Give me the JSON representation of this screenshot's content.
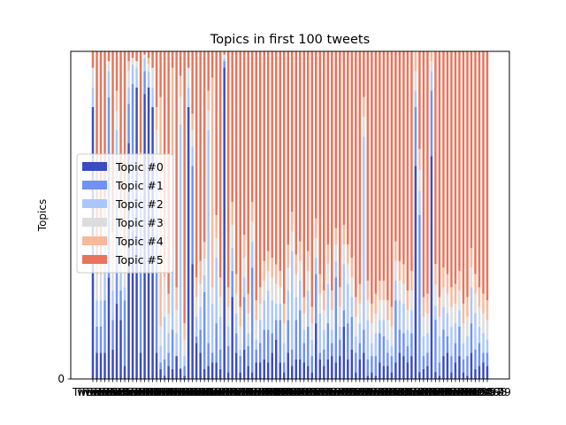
{
  "chart_data": {
    "type": "bar",
    "stacked": true,
    "title": "Topics in first 100 tweets",
    "xlabel": "",
    "ylabel": "Topics",
    "ylim": [
      0,
      1.0
    ],
    "yticks": [
      {
        "value": 0,
        "label": "0"
      }
    ],
    "xtick_prefix": "Tweet ",
    "grid": false,
    "legend_position": "center-left",
    "colors": [
      "#3b4cc0",
      "#6f92f3",
      "#aac7fd",
      "#dddcdc",
      "#f7b89c",
      "#e7745b"
    ],
    "series": [
      {
        "name": "Topic #0",
        "values": [
          0.83,
          0.08,
          0.08,
          0.08,
          0.31,
          0.09,
          0.23,
          0.18,
          0.04,
          0.72,
          0.45,
          0.89,
          0.08,
          0.87,
          0.89,
          0.83,
          0.08,
          0.03,
          0.01,
          0.04,
          0.03,
          0.07,
          0.03,
          0.01,
          0.83,
          0.35,
          0.11,
          0.08,
          0.03,
          0.04,
          0.05,
          0.05,
          0.03,
          0.95,
          0.02,
          0.25,
          0.08,
          0.02,
          0.09,
          0.04,
          0.02,
          0.05,
          0.05,
          0.06,
          0.05,
          0.08,
          0.12,
          0.05,
          0.02,
          0.08,
          0.04,
          0.06,
          0.06,
          0.05,
          0.04,
          0.02,
          0.17,
          0.06,
          0.04,
          0.06,
          0.07,
          0.05,
          0.07,
          0.16,
          0.06,
          0.09,
          0.02,
          0.06,
          0.08,
          0.01,
          0.02,
          0.01,
          0.05,
          0.04,
          0.04,
          0.02,
          0.05,
          0.08,
          0.07,
          0.05,
          0.07,
          0.65,
          0.02,
          0.03,
          0.04,
          0.68,
          0.02,
          0.01,
          0.07,
          0.08,
          0.02,
          0.05,
          0.07,
          0.02,
          0.01,
          0.08,
          0.03,
          0.04,
          0.05,
          0.04
        ]
      },
      {
        "name": "Topic #1",
        "values": [
          0.0,
          0.08,
          0.08,
          0.16,
          0.55,
          0.09,
          0.3,
          0.09,
          0.2,
          0.12,
          0.45,
          0.0,
          0.47,
          0.07,
          0.0,
          0.0,
          0.36,
          0.02,
          0.05,
          0.04,
          0.12,
          0.0,
          0.0,
          0.03,
          0.0,
          0.3,
          0.02,
          0.07,
          0.23,
          0.07,
          0.03,
          0.12,
          0.06,
          0.02,
          0.08,
          0.08,
          0.06,
          0.05,
          0.16,
          0.06,
          0.32,
          0.04,
          0.06,
          0.09,
          0.1,
          0.06,
          0.06,
          0.13,
          0.03,
          0.1,
          0.05,
          0.12,
          0.15,
          0.06,
          0.12,
          0.05,
          0.15,
          0.02,
          0.05,
          0.11,
          0.04,
          0.26,
          0.05,
          0.05,
          0.11,
          0.1,
          0.06,
          0.05,
          0.07,
          0.05,
          0.05,
          0.06,
          0.09,
          0.09,
          0.04,
          0.05,
          0.19,
          0.07,
          0.07,
          0.05,
          0.07,
          0.18,
          0.45,
          0.04,
          0.04,
          0.2,
          0.15,
          0.04,
          0.08,
          0.05,
          0.05,
          0.06,
          0.09,
          0.04,
          0.06,
          0.09,
          0.06,
          0.07,
          0.03,
          0.04
        ]
      },
      {
        "name": "Topic #2",
        "values": [
          0.06,
          0.08,
          0.08,
          0.17,
          0.08,
          0.09,
          0.23,
          0.09,
          0.04,
          0.05,
          0.06,
          0.06,
          0.02,
          0.04,
          0.05,
          0.06,
          0.24,
          0.05,
          0.13,
          0.06,
          0.2,
          0.07,
          0.7,
          0.03,
          0.06,
          0.06,
          0.06,
          0.07,
          0.05,
          0.65,
          0.15,
          0.2,
          0.1,
          0.01,
          0.06,
          0.07,
          0.06,
          0.02,
          0.06,
          0.04,
          0.08,
          0.03,
          0.07,
          0.09,
          0.12,
          0.1,
          0.05,
          0.05,
          0.06,
          0.09,
          0.3,
          0.07,
          0.09,
          0.04,
          0.11,
          0.05,
          0.05,
          0.12,
          0.06,
          0.12,
          0.04,
          0.05,
          0.04,
          0.14,
          0.12,
          0.06,
          0.05,
          0.06,
          0.59,
          0.12,
          0.04,
          0.07,
          0.04,
          0.05,
          0.04,
          0.03,
          0.06,
          0.09,
          0.09,
          0.05,
          0.07,
          0.05,
          0.07,
          0.06,
          0.06,
          0.06,
          0.04,
          0.08,
          0.07,
          0.07,
          0.09,
          0.06,
          0.05,
          0.05,
          0.06,
          0.11,
          0.11,
          0.05,
          0.06,
          0.04
        ]
      },
      {
        "name": "Topic #3",
        "values": [
          0.06,
          0.08,
          0.08,
          0.08,
          0.03,
          0.09,
          0.06,
          0.09,
          0.06,
          0.05,
          0.02,
          0.02,
          0.06,
          0.01,
          0.02,
          0.06,
          0.08,
          0.06,
          0.12,
          0.06,
          0.05,
          0.07,
          0.08,
          0.05,
          0.06,
          0.05,
          0.06,
          0.07,
          0.05,
          0.06,
          0.05,
          0.06,
          0.06,
          0.01,
          0.06,
          0.07,
          0.06,
          0.07,
          0.06,
          0.06,
          0.06,
          0.06,
          0.05,
          0.06,
          0.06,
          0.07,
          0.06,
          0.05,
          0.06,
          0.07,
          0.06,
          0.07,
          0.06,
          0.05,
          0.06,
          0.05,
          0.06,
          0.06,
          0.06,
          0.06,
          0.06,
          0.05,
          0.06,
          0.06,
          0.06,
          0.06,
          0.06,
          0.06,
          0.06,
          0.06,
          0.06,
          0.06,
          0.06,
          0.06,
          0.06,
          0.06,
          0.06,
          0.06,
          0.06,
          0.06,
          0.06,
          0.06,
          0.06,
          0.06,
          0.06,
          0.03,
          0.06,
          0.06,
          0.06,
          0.06,
          0.06,
          0.06,
          0.06,
          0.06,
          0.06,
          0.06,
          0.06,
          0.06,
          0.06,
          0.06
        ]
      },
      {
        "name": "Topic #4",
        "values": [
          0.0,
          0.06,
          0.06,
          0.06,
          0.0,
          0.09,
          0.06,
          0.09,
          0.06,
          0.03,
          0.0,
          0.0,
          0.06,
          0.0,
          0.02,
          0.0,
          0.07,
          0.7,
          0.06,
          0.06,
          0.55,
          0.07,
          0.06,
          0.05,
          0.0,
          0.05,
          0.06,
          0.07,
          0.05,
          0.06,
          0.64,
          0.07,
          0.06,
          0.0,
          0.06,
          0.07,
          0.06,
          0.06,
          0.07,
          0.06,
          0.06,
          0.06,
          0.05,
          0.06,
          0.06,
          0.06,
          0.06,
          0.05,
          0.06,
          0.07,
          0.06,
          0.06,
          0.06,
          0.05,
          0.06,
          0.05,
          0.06,
          0.06,
          0.06,
          0.06,
          0.06,
          0.05,
          0.06,
          0.06,
          0.06,
          0.06,
          0.06,
          0.06,
          0.06,
          0.06,
          0.06,
          0.06,
          0.06,
          0.06,
          0.06,
          0.06,
          0.06,
          0.06,
          0.06,
          0.06,
          0.06,
          0.06,
          0.06,
          0.06,
          0.06,
          0.03,
          0.06,
          0.06,
          0.06,
          0.06,
          0.06,
          0.06,
          0.06,
          0.06,
          0.06,
          0.06,
          0.06,
          0.06,
          0.06,
          0.06
        ]
      },
      {
        "name": "Topic #5",
        "values": [
          0.05,
          0.62,
          0.62,
          0.45,
          0.03,
          0.55,
          0.12,
          0.46,
          0.6,
          0.03,
          0.02,
          0.03,
          0.31,
          0.01,
          0.02,
          0.05,
          0.17,
          0.14,
          0.63,
          0.74,
          0.05,
          0.72,
          0.07,
          0.83,
          0.05,
          0.19,
          0.69,
          0.64,
          0.57,
          0.12,
          0.08,
          0.5,
          0.69,
          0.01,
          0.72,
          0.46,
          0.68,
          0.78,
          0.56,
          0.74,
          0.46,
          0.76,
          0.72,
          0.64,
          0.61,
          0.63,
          0.65,
          0.67,
          0.77,
          0.59,
          0.49,
          0.62,
          0.58,
          0.75,
          0.61,
          0.78,
          0.51,
          0.68,
          0.73,
          0.59,
          0.73,
          0.54,
          0.72,
          0.53,
          0.59,
          0.63,
          0.75,
          0.71,
          0.14,
          0.7,
          0.77,
          0.74,
          0.7,
          0.7,
          0.76,
          0.78,
          0.58,
          0.64,
          0.65,
          0.73,
          0.67,
          0.0,
          0.28,
          0.75,
          0.74,
          0.0,
          0.61,
          0.75,
          0.66,
          0.68,
          0.72,
          0.71,
          0.67,
          0.77,
          0.75,
          0.6,
          0.68,
          0.72,
          0.74,
          0.76
        ]
      }
    ]
  }
}
